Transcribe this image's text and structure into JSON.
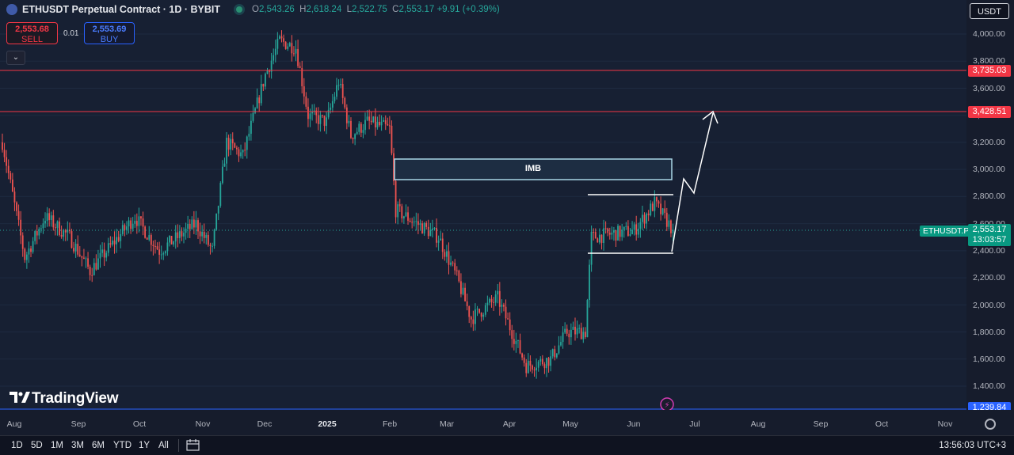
{
  "header": {
    "title": "ETHUSDT Perpetual Contract · 1D · BYBIT",
    "ohlc": [
      {
        "k": "O",
        "v": "2,543.26"
      },
      {
        "k": "H",
        "v": "2,618.24"
      },
      {
        "k": "L",
        "v": "2,522.75"
      },
      {
        "k": "C",
        "v": "2,553.17"
      }
    ],
    "change": "+9.91 (+0.39%)"
  },
  "trade": {
    "sell_price": "2,553.68",
    "sell_label": "SELL",
    "spread": "0.01",
    "buy_price": "2,553.69",
    "buy_label": "BUY"
  },
  "currency_button": "USDT",
  "price_axis": {
    "ticks": [
      "4,000.00",
      "3,800.00",
      "3,600.00",
      "3,400.00",
      "3,200.00",
      "3,000.00",
      "2,800.00",
      "2,600.00",
      "2,400.00",
      "2,200.00",
      "2,000.00",
      "1,800.00",
      "1,600.00",
      "1,400.00"
    ],
    "labels": {
      "level_high": "3,735.03",
      "level_mid": "3,428.51",
      "current_symbol": "ETHUSDT.P",
      "current_price": "2,553.17",
      "countdown": "13:03:57",
      "level_low": "1,239.84"
    }
  },
  "time_axis": [
    "Aug",
    "Sep",
    "Oct",
    "Nov",
    "Dec",
    "2025",
    "Feb",
    "Mar",
    "Apr",
    "May",
    "Jun",
    "Jul",
    "Aug",
    "Sep",
    "Oct",
    "Nov"
  ],
  "annotations": {
    "imb_label": "IMB"
  },
  "toolbar": {
    "timeframes": [
      "1D",
      "5D",
      "1M",
      "3M",
      "6M",
      "YTD",
      "1Y",
      "All"
    ],
    "clock": "13:56:03 UTC+3"
  },
  "logo_text": "TradingView",
  "colors": {
    "up": "#26a69a",
    "down": "#ef5350",
    "level": "#f23645",
    "base": "#2962ff"
  },
  "chart_data": {
    "type": "candlestick",
    "symbol": "ETHUSDT.P",
    "timeframe": "1D",
    "ylim": [
      1239.84,
      4100
    ],
    "horizontal_levels": [
      3735.03,
      3428.51,
      1239.84
    ],
    "waypoints": [
      {
        "date": "2024-07-25",
        "price": 3200
      },
      {
        "date": "2024-08-05",
        "price": 2350
      },
      {
        "date": "2024-08-15",
        "price": 2650
      },
      {
        "date": "2024-08-27",
        "price": 2500
      },
      {
        "date": "2024-09-06",
        "price": 2250
      },
      {
        "date": "2024-09-28",
        "price": 2650
      },
      {
        "date": "2024-10-10",
        "price": 2400
      },
      {
        "date": "2024-10-28",
        "price": 2600
      },
      {
        "date": "2024-11-05",
        "price": 2400
      },
      {
        "date": "2024-11-12",
        "price": 3200
      },
      {
        "date": "2024-11-20",
        "price": 3100
      },
      {
        "date": "2024-12-01",
        "price": 3700
      },
      {
        "date": "2024-12-08",
        "price": 3950
      },
      {
        "date": "2024-12-16",
        "price": 3900
      },
      {
        "date": "2024-12-22",
        "price": 3400
      },
      {
        "date": "2024-12-31",
        "price": 3350
      },
      {
        "date": "2025-01-06",
        "price": 3650
      },
      {
        "date": "2025-01-12",
        "price": 3250
      },
      {
        "date": "2025-01-20",
        "price": 3350
      },
      {
        "date": "2025-01-31",
        "price": 3300
      },
      {
        "date": "2025-02-03",
        "price": 2700
      },
      {
        "date": "2025-02-24",
        "price": 2500
      },
      {
        "date": "2025-03-05",
        "price": 2200
      },
      {
        "date": "2025-03-12",
        "price": 1900
      },
      {
        "date": "2025-03-25",
        "price": 2050
      },
      {
        "date": "2025-04-08",
        "price": 1550
      },
      {
        "date": "2025-04-20",
        "price": 1600
      },
      {
        "date": "2025-04-28",
        "price": 1800
      },
      {
        "date": "2025-05-07",
        "price": 1800
      },
      {
        "date": "2025-05-10",
        "price": 2500
      },
      {
        "date": "2025-05-31",
        "price": 2550
      },
      {
        "date": "2025-06-10",
        "price": 2750
      },
      {
        "date": "2025-06-19",
        "price": 2553.17
      }
    ]
  }
}
